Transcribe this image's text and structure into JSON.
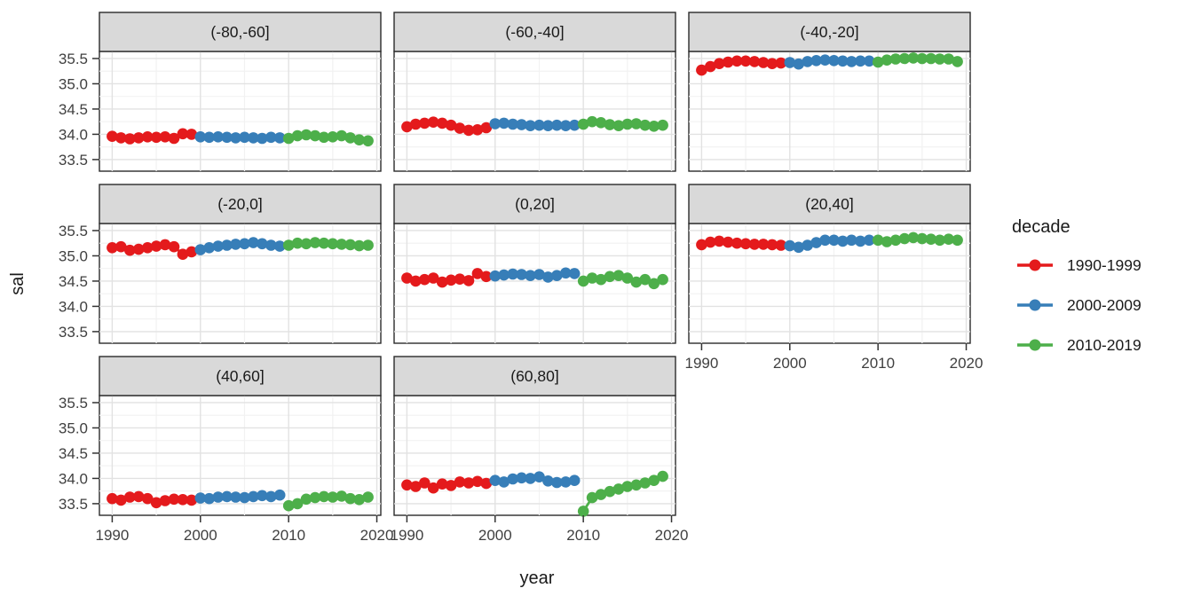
{
  "chart_data": {
    "type": "scatter",
    "title": "",
    "xlabel": "year",
    "ylabel": "sal",
    "x_ticks": [
      1990,
      2000,
      2010,
      2020
    ],
    "y_ticks": [
      "33.5",
      "34.0",
      "34.5",
      "35.0",
      "35.5"
    ],
    "y_tick_values": [
      33.5,
      34.0,
      34.5,
      35.0,
      35.5
    ],
    "x_minor_ticks": [
      1995,
      2005,
      2015
    ],
    "y_minor_ticks": [
      33.75,
      34.25,
      34.75,
      35.25
    ],
    "x_range": [
      1988.55,
      2020.45
    ],
    "y_range": [
      33.27,
      35.64
    ],
    "grid": "major+minor",
    "legend": {
      "title": "decade",
      "position": "right",
      "entries": [
        {
          "label": "1990-1999",
          "color": "#E41A1C"
        },
        {
          "label": "2000-2009",
          "color": "#377EB8"
        },
        {
          "label": "2010-2019",
          "color": "#4DAF4A"
        }
      ]
    },
    "series_meta": [
      {
        "name": "1990-1999",
        "color": "#E41A1C",
        "start_year": 1990
      },
      {
        "name": "2000-2009",
        "color": "#377EB8",
        "start_year": 2000
      },
      {
        "name": "2010-2019",
        "color": "#4DAF4A",
        "start_year": 2010
      }
    ],
    "facets": [
      {
        "label": "(-80,-60]",
        "series": [
          [
            33.96,
            33.93,
            33.91,
            33.93,
            33.95,
            33.94,
            33.95,
            33.92,
            34.01,
            34.0
          ],
          [
            33.95,
            33.94,
            33.95,
            33.94,
            33.93,
            33.94,
            33.93,
            33.92,
            33.94,
            33.93
          ],
          [
            33.92,
            33.97,
            33.99,
            33.97,
            33.94,
            33.95,
            33.97,
            33.93,
            33.89,
            33.87
          ]
        ]
      },
      {
        "label": "(-60,-40]",
        "series": [
          [
            34.15,
            34.2,
            34.22,
            34.24,
            34.22,
            34.18,
            34.12,
            34.08,
            34.09,
            34.13
          ],
          [
            34.21,
            34.22,
            34.2,
            34.19,
            34.17,
            34.18,
            34.17,
            34.18,
            34.17,
            34.18
          ],
          [
            34.2,
            34.25,
            34.23,
            34.19,
            34.17,
            34.2,
            34.21,
            34.18,
            34.16,
            34.18
          ]
        ]
      },
      {
        "label": "(-40,-20]",
        "series": [
          [
            35.27,
            35.34,
            35.4,
            35.43,
            35.45,
            35.45,
            35.44,
            35.42,
            35.4,
            35.41
          ],
          [
            35.42,
            35.39,
            35.44,
            35.46,
            35.47,
            35.46,
            35.45,
            35.44,
            35.45,
            35.45
          ],
          [
            35.43,
            35.47,
            35.49,
            35.5,
            35.51,
            35.5,
            35.5,
            35.49,
            35.49,
            35.44
          ]
        ]
      },
      {
        "label": "(-20,0]",
        "series": [
          [
            35.16,
            35.18,
            35.11,
            35.13,
            35.16,
            35.19,
            35.22,
            35.18,
            35.03,
            35.08
          ],
          [
            35.12,
            35.16,
            35.19,
            35.21,
            35.23,
            35.24,
            35.26,
            35.24,
            35.21,
            35.19
          ],
          [
            35.21,
            35.25,
            35.24,
            35.26,
            35.25,
            35.24,
            35.23,
            35.22,
            35.2,
            35.21
          ]
        ]
      },
      {
        "label": "(0,20]",
        "series": [
          [
            34.56,
            34.5,
            34.53,
            34.56,
            34.48,
            34.52,
            34.54,
            34.51,
            34.65,
            34.59
          ],
          [
            34.6,
            34.62,
            34.64,
            34.63,
            34.61,
            34.63,
            34.58,
            34.61,
            34.66,
            34.65
          ],
          [
            34.5,
            34.56,
            34.53,
            34.59,
            34.61,
            34.56,
            34.48,
            34.53,
            34.45,
            34.53
          ]
        ]
      },
      {
        "label": "(20,40]",
        "series": [
          [
            35.22,
            35.27,
            35.29,
            35.27,
            35.25,
            35.24,
            35.23,
            35.23,
            35.22,
            35.21
          ],
          [
            35.2,
            35.17,
            35.21,
            35.26,
            35.31,
            35.31,
            35.29,
            35.31,
            35.29,
            35.31
          ],
          [
            35.31,
            35.28,
            35.31,
            35.34,
            35.36,
            35.34,
            35.33,
            35.31,
            35.33,
            35.31
          ]
        ]
      },
      {
        "label": "(40,60]",
        "series": [
          [
            33.6,
            33.57,
            33.63,
            33.64,
            33.6,
            33.52,
            33.56,
            33.59,
            33.58,
            33.57
          ],
          [
            33.61,
            33.6,
            33.63,
            33.64,
            33.63,
            33.62,
            33.64,
            33.66,
            33.64,
            33.67
          ],
          [
            33.46,
            33.5,
            33.59,
            33.62,
            33.64,
            33.63,
            33.65,
            33.6,
            33.58,
            33.63
          ]
        ]
      },
      {
        "label": "(60,80]",
        "series": [
          [
            33.87,
            33.84,
            33.91,
            33.81,
            33.89,
            33.86,
            33.93,
            33.91,
            33.94,
            33.9
          ],
          [
            33.96,
            33.93,
            33.99,
            34.01,
            34.0,
            34.03,
            33.95,
            33.92,
            33.93,
            33.96
          ],
          [
            33.35,
            33.62,
            33.68,
            33.74,
            33.79,
            33.84,
            33.87,
            33.91,
            33.96,
            34.04
          ]
        ]
      }
    ]
  },
  "theme": {
    "strip_fill": "#D9D9D9",
    "strip_text_color": "#1A1A1A",
    "panel_fill": "#FFFFFF",
    "panel_border": "#2B2B2B",
    "grid_major": "#E2E2E2",
    "grid_minor": "#F2F2F2",
    "tick_color": "#333333",
    "tick_label_color": "#404040",
    "axis_title_color": "#1A1A1A"
  }
}
